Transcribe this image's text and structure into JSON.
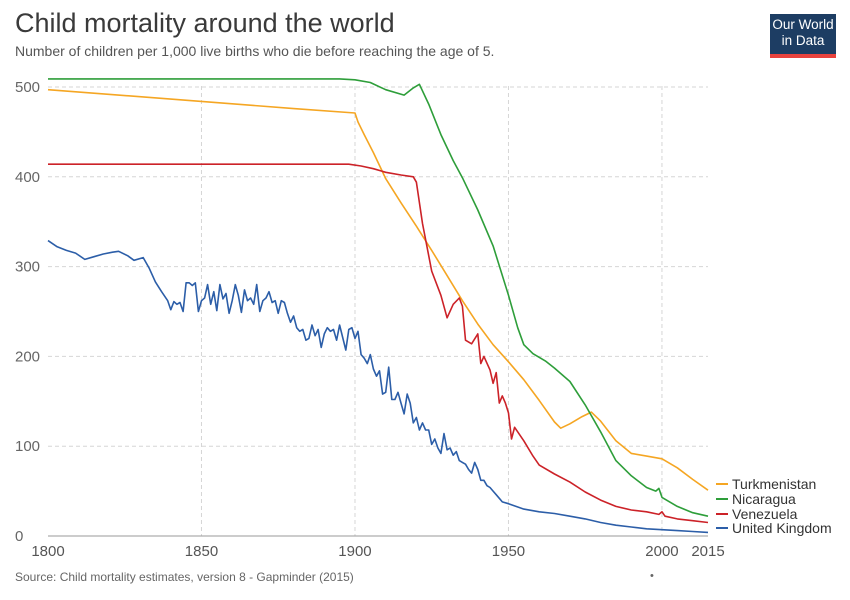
{
  "header": {
    "title": "Child mortality around the world",
    "subtitle": "Number of children per 1,000 live births who die before reaching the age of 5."
  },
  "logo": {
    "line1": "Our World",
    "line2": "in Data"
  },
  "footer": {
    "source": "Source: Child mortality estimates, version 8 - Gapminder (2015)",
    "dot": "•"
  },
  "chart_data": {
    "type": "line",
    "title": "Child mortality around the world",
    "xlabel": "",
    "ylabel": "",
    "xlim": [
      1800,
      2015
    ],
    "ylim": [
      0,
      510
    ],
    "x_ticks": [
      "1800",
      "1850",
      "1900",
      "1950",
      "2000",
      "2015"
    ],
    "y_ticks": [
      "0",
      "100",
      "200",
      "300",
      "400",
      "500"
    ],
    "grid": "dashed",
    "legend_position": "right",
    "series": [
      {
        "name": "Turkmenistan",
        "color": "#f5a623",
        "points": [
          [
            1800,
            497
          ],
          [
            1850,
            484
          ],
          [
            1880,
            476
          ],
          [
            1900,
            471
          ],
          [
            1901,
            461
          ],
          [
            1903,
            447
          ],
          [
            1906,
            427
          ],
          [
            1910,
            398
          ],
          [
            1915,
            371
          ],
          [
            1920,
            345
          ],
          [
            1925,
            318
          ],
          [
            1930,
            290
          ],
          [
            1935,
            262
          ],
          [
            1940,
            236
          ],
          [
            1945,
            213
          ],
          [
            1950,
            194
          ],
          [
            1955,
            174
          ],
          [
            1960,
            151
          ],
          [
            1965,
            127
          ],
          [
            1967,
            120
          ],
          [
            1970,
            125
          ],
          [
            1974,
            133
          ],
          [
            1977,
            138
          ],
          [
            1980,
            128
          ],
          [
            1985,
            106
          ],
          [
            1990,
            92
          ],
          [
            1995,
            89
          ],
          [
            2000,
            86
          ],
          [
            2005,
            76
          ],
          [
            2010,
            63
          ],
          [
            2015,
            51
          ]
        ]
      },
      {
        "name": "Nicaragua",
        "color": "#2e9e3a",
        "points": [
          [
            1800,
            509
          ],
          [
            1880,
            509
          ],
          [
            1895,
            509
          ],
          [
            1900,
            508
          ],
          [
            1905,
            505
          ],
          [
            1910,
            497
          ],
          [
            1916,
            491
          ],
          [
            1919,
            499
          ],
          [
            1921,
            503
          ],
          [
            1924,
            481
          ],
          [
            1928,
            447
          ],
          [
            1932,
            418
          ],
          [
            1935,
            399
          ],
          [
            1940,
            363
          ],
          [
            1945,
            323
          ],
          [
            1950,
            268
          ],
          [
            1953,
            232
          ],
          [
            1955,
            213
          ],
          [
            1958,
            203
          ],
          [
            1962,
            195
          ],
          [
            1965,
            187
          ],
          [
            1970,
            172
          ],
          [
            1975,
            146
          ],
          [
            1980,
            116
          ],
          [
            1985,
            84
          ],
          [
            1990,
            67
          ],
          [
            1995,
            54
          ],
          [
            1998,
            50
          ],
          [
            1999,
            53
          ],
          [
            2000,
            43
          ],
          [
            2005,
            33
          ],
          [
            2010,
            26
          ],
          [
            2015,
            22
          ]
        ]
      },
      {
        "name": "Venezuela",
        "color": "#cc2228",
        "points": [
          [
            1800,
            414
          ],
          [
            1850,
            414
          ],
          [
            1898,
            414
          ],
          [
            1902,
            412
          ],
          [
            1906,
            409
          ],
          [
            1910,
            405
          ],
          [
            1915,
            402
          ],
          [
            1919,
            400
          ],
          [
            1920,
            394
          ],
          [
            1922,
            348
          ],
          [
            1925,
            295
          ],
          [
            1928,
            268
          ],
          [
            1930,
            243
          ],
          [
            1932,
            258
          ],
          [
            1934,
            265
          ],
          [
            1935,
            256
          ],
          [
            1936,
            218
          ],
          [
            1938,
            214
          ],
          [
            1940,
            225
          ],
          [
            1941,
            192
          ],
          [
            1942,
            200
          ],
          [
            1944,
            185
          ],
          [
            1945,
            170
          ],
          [
            1946,
            182
          ],
          [
            1947,
            148
          ],
          [
            1948,
            156
          ],
          [
            1949,
            148
          ],
          [
            1950,
            137
          ],
          [
            1951,
            108
          ],
          [
            1952,
            121
          ],
          [
            1955,
            106
          ],
          [
            1958,
            89
          ],
          [
            1960,
            79
          ],
          [
            1965,
            69
          ],
          [
            1970,
            60
          ],
          [
            1975,
            49
          ],
          [
            1980,
            40
          ],
          [
            1985,
            33
          ],
          [
            1990,
            29
          ],
          [
            1995,
            27
          ],
          [
            1999,
            24
          ],
          [
            2000,
            27
          ],
          [
            2001,
            22
          ],
          [
            2005,
            19
          ],
          [
            2010,
            17
          ],
          [
            2015,
            15
          ]
        ]
      },
      {
        "name": "United Kingdom",
        "color": "#2c5ea8",
        "points": [
          [
            1800,
            329
          ],
          [
            1803,
            322
          ],
          [
            1806,
            318
          ],
          [
            1809,
            315
          ],
          [
            1812,
            308
          ],
          [
            1815,
            311
          ],
          [
            1818,
            314
          ],
          [
            1821,
            316
          ],
          [
            1823,
            317
          ],
          [
            1826,
            312
          ],
          [
            1828,
            307
          ],
          [
            1831,
            310
          ],
          [
            1833,
            298
          ],
          [
            1835,
            283
          ],
          [
            1837,
            272
          ],
          [
            1839,
            262
          ],
          [
            1840,
            252
          ],
          [
            1841,
            261
          ],
          [
            1842,
            258
          ],
          [
            1843,
            260
          ],
          [
            1844,
            250
          ],
          [
            1845,
            282
          ],
          [
            1846,
            282
          ],
          [
            1847,
            279
          ],
          [
            1848,
            282
          ],
          [
            1849,
            250
          ],
          [
            1850,
            262
          ],
          [
            1851,
            265
          ],
          [
            1852,
            280
          ],
          [
            1853,
            258
          ],
          [
            1854,
            272
          ],
          [
            1855,
            251
          ],
          [
            1856,
            280
          ],
          [
            1857,
            264
          ],
          [
            1858,
            270
          ],
          [
            1859,
            248
          ],
          [
            1860,
            262
          ],
          [
            1861,
            280
          ],
          [
            1862,
            268
          ],
          [
            1863,
            249
          ],
          [
            1864,
            274
          ],
          [
            1865,
            262
          ],
          [
            1866,
            265
          ],
          [
            1867,
            258
          ],
          [
            1868,
            280
          ],
          [
            1869,
            250
          ],
          [
            1870,
            262
          ],
          [
            1871,
            265
          ],
          [
            1872,
            272
          ],
          [
            1873,
            260
          ],
          [
            1874,
            262
          ],
          [
            1875,
            248
          ],
          [
            1876,
            262
          ],
          [
            1877,
            260
          ],
          [
            1878,
            248
          ],
          [
            1879,
            238
          ],
          [
            1880,
            245
          ],
          [
            1881,
            232
          ],
          [
            1882,
            228
          ],
          [
            1883,
            230
          ],
          [
            1884,
            218
          ],
          [
            1885,
            220
          ],
          [
            1886,
            235
          ],
          [
            1887,
            223
          ],
          [
            1888,
            230
          ],
          [
            1889,
            210
          ],
          [
            1890,
            225
          ],
          [
            1891,
            232
          ],
          [
            1892,
            228
          ],
          [
            1893,
            230
          ],
          [
            1894,
            218
          ],
          [
            1895,
            235
          ],
          [
            1896,
            221
          ],
          [
            1897,
            207
          ],
          [
            1898,
            230
          ],
          [
            1899,
            232
          ],
          [
            1900,
            220
          ],
          [
            1901,
            228
          ],
          [
            1902,
            202
          ],
          [
            1903,
            198
          ],
          [
            1904,
            192
          ],
          [
            1905,
            202
          ],
          [
            1906,
            186
          ],
          [
            1907,
            178
          ],
          [
            1908,
            184
          ],
          [
            1909,
            158
          ],
          [
            1910,
            160
          ],
          [
            1911,
            188
          ],
          [
            1912,
            152
          ],
          [
            1913,
            152
          ],
          [
            1914,
            160
          ],
          [
            1915,
            148
          ],
          [
            1916,
            136
          ],
          [
            1917,
            158
          ],
          [
            1918,
            148
          ],
          [
            1919,
            126
          ],
          [
            1920,
            132
          ],
          [
            1921,
            118
          ],
          [
            1922,
            126
          ],
          [
            1923,
            118
          ],
          [
            1924,
            118
          ],
          [
            1925,
            102
          ],
          [
            1926,
            108
          ],
          [
            1927,
            98
          ],
          [
            1928,
            92
          ],
          [
            1929,
            114
          ],
          [
            1930,
            96
          ],
          [
            1931,
            98
          ],
          [
            1932,
            90
          ],
          [
            1933,
            94
          ],
          [
            1934,
            84
          ],
          [
            1935,
            82
          ],
          [
            1936,
            80
          ],
          [
            1937,
            74
          ],
          [
            1938,
            70
          ],
          [
            1939,
            82
          ],
          [
            1940,
            74
          ],
          [
            1941,
            62
          ],
          [
            1942,
            62
          ],
          [
            1943,
            56
          ],
          [
            1944,
            54
          ],
          [
            1945,
            50
          ],
          [
            1946,
            46
          ],
          [
            1947,
            42
          ],
          [
            1948,
            38
          ],
          [
            1950,
            36
          ],
          [
            1955,
            30
          ],
          [
            1960,
            27
          ],
          [
            1965,
            25
          ],
          [
            1970,
            22
          ],
          [
            1975,
            19
          ],
          [
            1980,
            15
          ],
          [
            1985,
            12
          ],
          [
            1990,
            10
          ],
          [
            1995,
            8
          ],
          [
            2000,
            7
          ],
          [
            2005,
            6
          ],
          [
            2010,
            5
          ],
          [
            2015,
            4
          ]
        ]
      }
    ]
  }
}
